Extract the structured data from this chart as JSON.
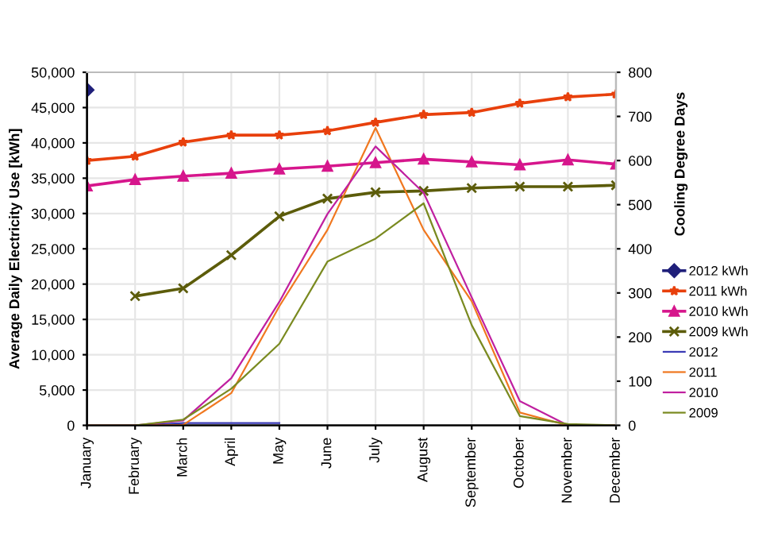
{
  "chart_data": {
    "type": "line",
    "ylabel": "Average Daily Electricity Use [kWh]",
    "y2label": "Cooling Degree Days",
    "categories": [
      "January",
      "February",
      "March",
      "April",
      "May",
      "June",
      "July",
      "August",
      "September",
      "October",
      "November",
      "December"
    ],
    "ylim": [
      0,
      50000
    ],
    "yticks": [
      {
        "value": 0,
        "label": "0"
      },
      {
        "value": 5000,
        "label": "5,000"
      },
      {
        "value": 10000,
        "label": "10,000"
      },
      {
        "value": 15000,
        "label": "15,000"
      },
      {
        "value": 20000,
        "label": "20,000"
      },
      {
        "value": 25000,
        "label": "25,000"
      },
      {
        "value": 30000,
        "label": "30,000"
      },
      {
        "value": 35000,
        "label": "35,000"
      },
      {
        "value": 40000,
        "label": "40,000"
      },
      {
        "value": 45000,
        "label": "45,000"
      },
      {
        "value": 50000,
        "label": "50,000"
      }
    ],
    "y2lim": [
      0,
      800
    ],
    "y2ticks": [
      0,
      100,
      200,
      300,
      400,
      500,
      600,
      700,
      800
    ],
    "grid": true,
    "legend": "right",
    "series": [
      {
        "name": "2012 kWh",
        "color": "#1f1f7a",
        "marker": "diamond",
        "values": [
          47500,
          null,
          null,
          null,
          null,
          null,
          null,
          null,
          null,
          null,
          null,
          null
        ]
      },
      {
        "name": "2011 kWh",
        "color": "#e8400c",
        "marker": "star",
        "values": [
          37500,
          38100,
          40100,
          41100,
          41100,
          41700,
          42900,
          44000,
          44300,
          45600,
          46500,
          46900
        ]
      },
      {
        "name": "2010 kWh",
        "color": "#d6168c",
        "marker": "triangle",
        "values": [
          33900,
          34800,
          35300,
          35700,
          36300,
          36700,
          37200,
          37700,
          37300,
          36900,
          37600,
          37000
        ]
      },
      {
        "name": "2009 kWh",
        "color": "#5c5c0a",
        "marker": "cross",
        "values": [
          null,
          18300,
          19400,
          24100,
          29600,
          32100,
          33000,
          33200,
          33600,
          33800,
          33800,
          34000
        ]
      },
      {
        "name": "2012",
        "color": "#3a3ab5",
        "marker": "none",
        "axis": "y2",
        "values": [
          0,
          0,
          5,
          5,
          5,
          null,
          null,
          null,
          null,
          null,
          null,
          null
        ]
      },
      {
        "name": "2011",
        "color": "#f07820",
        "marker": "none",
        "axis": "y2",
        "values": [
          0,
          0,
          1,
          73,
          270,
          443,
          674,
          443,
          281,
          29,
          0,
          0
        ]
      },
      {
        "name": "2010",
        "color": "#c020a0",
        "marker": "none",
        "axis": "y2",
        "values": [
          0,
          0,
          11,
          107,
          280,
          479,
          632,
          527,
          290,
          55,
          0,
          0
        ]
      },
      {
        "name": "2009",
        "color": "#7a8a20",
        "marker": "none",
        "axis": "y2",
        "values": [
          0,
          0,
          13,
          83,
          185,
          371,
          423,
          503,
          227,
          21,
          3,
          0
        ]
      }
    ]
  }
}
